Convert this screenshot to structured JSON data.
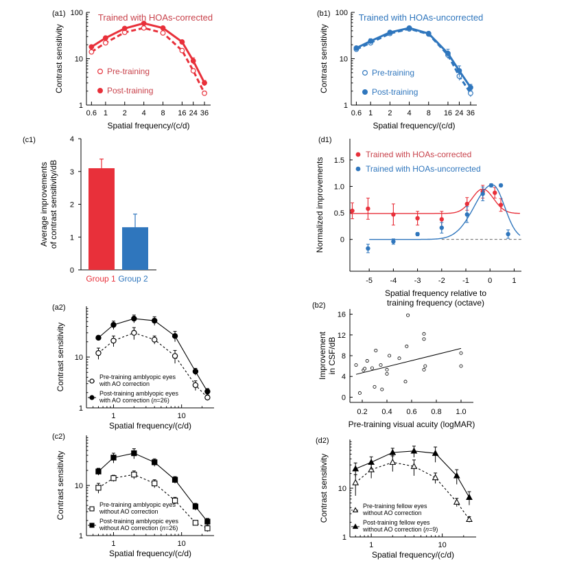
{
  "colors": {
    "red": "#e8303a",
    "blue": "#2f76bd",
    "black": "#000000",
    "redtext": "#c8414a"
  },
  "chart_data": [
    {
      "id": "a1",
      "type": "line",
      "panel_label": "(a1)",
      "title": "Trained with HOAs-corrected",
      "title_color": "red",
      "xlabel": "Spatial frequency/(c/d)",
      "ylabel": "Contrast sensitivity",
      "x_scale": "log",
      "y_scale": "log",
      "xlim": [
        0.5,
        45
      ],
      "ylim": [
        1,
        100
      ],
      "xticks": [
        0.6,
        1,
        2,
        4,
        8,
        16,
        24,
        36
      ],
      "xtick_labels": [
        "0.6",
        "1",
        "2",
        "4",
        "8",
        "16",
        "24",
        "36"
      ],
      "yticks": [
        1,
        10,
        100
      ],
      "ytick_labels": [
        "1",
        "10",
        "100"
      ],
      "legend_position": "left-middle",
      "series": [
        {
          "name": "Pre-training",
          "color": "red",
          "marker": "open-circle",
          "dash": true,
          "x": [
            0.6,
            1,
            2,
            4,
            8,
            16,
            24,
            36
          ],
          "y": [
            14,
            22,
            37,
            46,
            36,
            15,
            5.5,
            1.8
          ],
          "err": [
            1.2,
            2,
            3,
            3,
            3,
            1.5,
            0.6,
            0.2
          ]
        },
        {
          "name": "Post-training",
          "color": "red",
          "marker": "filled-circle",
          "dash": false,
          "x": [
            0.6,
            1,
            2,
            4,
            8,
            16,
            24,
            36
          ],
          "y": [
            18,
            28,
            45,
            58,
            46,
            23,
            9,
            3
          ],
          "err": [
            1.2,
            2,
            3,
            4,
            3,
            2,
            1.5,
            0.4
          ]
        }
      ]
    },
    {
      "id": "b1",
      "type": "line",
      "panel_label": "(b1)",
      "title": "Trained with HOAs-uncorrected",
      "title_color": "blue",
      "xlabel": "Spatial frequency/(c/d)",
      "ylabel": "Contrast sensitivity",
      "x_scale": "log",
      "y_scale": "log",
      "xlim": [
        0.5,
        45
      ],
      "ylim": [
        1,
        100
      ],
      "xticks": [
        0.6,
        1,
        2,
        4,
        8,
        16,
        24,
        36
      ],
      "xtick_labels": [
        "0.6",
        "1",
        "2",
        "4",
        "8",
        "16",
        "24",
        "36"
      ],
      "yticks": [
        1,
        10,
        100
      ],
      "ytick_labels": [
        "1",
        "10",
        "100"
      ],
      "legend_position": "left-bottom",
      "series": [
        {
          "name": "Pre-training",
          "color": "blue",
          "marker": "open-circle",
          "dash": true,
          "x": [
            0.6,
            1,
            2,
            4,
            8,
            16,
            24,
            36
          ],
          "y": [
            16,
            22,
            35,
            44,
            34,
            12,
            4.2,
            1.8
          ],
          "err": [
            1.5,
            2,
            3,
            3,
            3,
            2,
            0.8,
            0.3
          ]
        },
        {
          "name": "Post-training",
          "color": "blue",
          "marker": "filled-circle",
          "dash": false,
          "x": [
            0.6,
            1,
            2,
            4,
            8,
            16,
            24,
            36
          ],
          "y": [
            17,
            24,
            37,
            46,
            35,
            13,
            5.5,
            2.4
          ],
          "err": [
            1.5,
            3,
            3,
            3,
            3,
            3,
            1.5,
            0.4
          ]
        }
      ]
    },
    {
      "id": "c1",
      "type": "bar",
      "panel_label": "(c1)",
      "ylabel": "Average improvements of contrast sensitivity/dB",
      "ylim": [
        0,
        4
      ],
      "yticks": [
        0,
        1,
        2,
        3,
        4
      ],
      "categories": [
        "Group 1",
        "Group 2"
      ],
      "values": [
        3.1,
        1.3
      ],
      "err": [
        0.28,
        0.4
      ],
      "category_colors": [
        "red",
        "blue"
      ]
    },
    {
      "id": "d1",
      "type": "scatter",
      "panel_label": "(d1)",
      "xlabel": "Spatial frequency relative to training frequency (octave)",
      "ylabel": "Normalized improvements",
      "xlim": [
        -5.8,
        1.3
      ],
      "ylim": [
        -0.6,
        1.9
      ],
      "xticks": [
        -5,
        -4,
        -3,
        -2,
        -1,
        0,
        1
      ],
      "yticks": [
        0,
        0.5,
        1.0,
        1.5
      ],
      "ytick_labels": [
        "0",
        "0.5",
        "1.0",
        "1.5"
      ],
      "legend_position": "top-right",
      "series": [
        {
          "name": "Trained with HOAs-corrected",
          "color": "red",
          "x": [
            -5.7,
            -5.05,
            -4,
            -3,
            -2,
            -0.95,
            -0.3,
            0.2,
            0.45
          ],
          "y": [
            0.54,
            0.58,
            0.47,
            0.4,
            0.38,
            0.67,
            0.9,
            0.88,
            0.65
          ],
          "err": [
            0.15,
            0.2,
            0.2,
            0.13,
            0.15,
            0.12,
            0.12,
            0.1,
            0.12
          ]
        },
        {
          "name": "Trained with HOAs-uncorrected",
          "color": "blue",
          "x": [
            -5.05,
            -4,
            -3,
            -2,
            -0.95,
            -0.3,
            0.05,
            0.45,
            0.75
          ],
          "y": [
            -0.17,
            -0.04,
            0.1,
            0.22,
            0.47,
            0.86,
            1.02,
            1.02,
            0.1
          ],
          "err": [
            0.08,
            0.05,
            0.03,
            0.1,
            0.15,
            0.13,
            0.03,
            0.02,
            0.08
          ]
        }
      ]
    },
    {
      "id": "a2",
      "type": "line",
      "panel_label": "(a2)",
      "xlabel": "Spatial frequency/(c/d)",
      "ylabel": "Contrast sensitivity",
      "x_scale": "log",
      "y_scale": "log",
      "xlim": [
        0.4,
        30
      ],
      "ylim": [
        1,
        100
      ],
      "xticks": [
        1,
        10
      ],
      "xtick_labels": [
        "1",
        "10"
      ],
      "yticks": [
        1,
        10
      ],
      "ytick_labels": [
        "1",
        "10"
      ],
      "legend_position": "bottom-left",
      "series": [
        {
          "name": "Pre-training amblyopic eyes with AO correction",
          "color": "black",
          "marker": "open-circle",
          "dash": true,
          "x": [
            0.6,
            1,
            2,
            4,
            8,
            16,
            24
          ],
          "y": [
            12,
            21,
            30,
            22,
            10.5,
            2.8,
            1.6
          ],
          "err": [
            3,
            5,
            8,
            4,
            3,
            0.6,
            0.2
          ]
        },
        {
          "name": "Post-training amblyopic eyes with AO correction (n=26)",
          "color": "black",
          "marker": "filled-circle",
          "dash": false,
          "x": [
            0.6,
            1,
            2,
            4,
            8,
            16,
            24
          ],
          "y": [
            24,
            43,
            57,
            52,
            26,
            5.2,
            2.1
          ],
          "err": [
            2,
            8,
            10,
            10,
            6,
            0.8,
            0.3
          ]
        }
      ]
    },
    {
      "id": "b2",
      "type": "scatter",
      "panel_label": "(b2)",
      "xlabel": "Pre-training visual acuity (logMAR)",
      "ylabel": "Improvement in CSF/dB",
      "xlim": [
        0.1,
        1.1
      ],
      "ylim": [
        -1,
        17
      ],
      "xticks": [
        0.2,
        0.4,
        0.6,
        0.8,
        1.0
      ],
      "xtick_labels": [
        "0.2",
        "0.4",
        "0.6",
        "0.8",
        "1.0"
      ],
      "yticks": [
        0,
        4,
        8,
        12,
        16
      ],
      "points_x": [
        0.15,
        0.18,
        0.21,
        0.22,
        0.24,
        0.28,
        0.3,
        0.31,
        0.35,
        0.36,
        0.4,
        0.4,
        0.42,
        0.5,
        0.55,
        0.56,
        0.57,
        0.7,
        0.7,
        0.7,
        0.71,
        1.0,
        1.0
      ],
      "points_y": [
        6.2,
        0.8,
        5.2,
        5.5,
        7,
        5.6,
        2,
        9,
        6.2,
        1.5,
        5.3,
        4.5,
        8,
        7.5,
        3,
        9.8,
        15.8,
        12.2,
        11.2,
        5.3,
        6,
        8.5,
        6
      ],
      "fit_x": [
        0.15,
        1.0
      ],
      "fit_y": [
        4.4,
        9.4
      ]
    },
    {
      "id": "c2",
      "type": "line",
      "panel_label": "(c2)",
      "xlabel": "Spatial frequency/(c/d)",
      "ylabel": "Contrast sensitivity",
      "x_scale": "log",
      "y_scale": "log",
      "xlim": [
        0.4,
        30
      ],
      "ylim": [
        1,
        100
      ],
      "xticks": [
        1,
        10
      ],
      "xtick_labels": [
        "1",
        "10"
      ],
      "yticks": [
        1,
        10
      ],
      "ytick_labels": [
        "1",
        "10"
      ],
      "legend_position": "bottom-left",
      "series": [
        {
          "name": "Pre-training amblyopic eyes without AO correction",
          "color": "black",
          "marker": "open-square",
          "dash": true,
          "x": [
            0.6,
            1,
            2,
            4,
            8,
            16,
            24
          ],
          "y": [
            9,
            14,
            16.5,
            11,
            5,
            1.8,
            1.4
          ],
          "err": [
            2,
            2,
            3,
            2,
            0.8,
            0.2,
            0.2
          ]
        },
        {
          "name": "Post-training amblyopic eyes without AO correction (n=26)",
          "color": "black",
          "marker": "filled-square",
          "dash": false,
          "x": [
            0.6,
            1,
            2,
            4,
            8,
            16,
            24
          ],
          "y": [
            19,
            36,
            44,
            29,
            13,
            3.8,
            1.9
          ],
          "err": [
            3,
            8,
            10,
            5,
            2,
            0.6,
            0.3
          ]
        }
      ]
    },
    {
      "id": "d2",
      "type": "line",
      "panel_label": "(d2)",
      "xlabel": "Spatial frequency/(c/d)",
      "ylabel": "Contrast sensitivity",
      "x_scale": "log",
      "y_scale": "log",
      "xlim": [
        0.5,
        30
      ],
      "ylim": [
        1,
        100
      ],
      "xticks": [
        1,
        10
      ],
      "xtick_labels": [
        "1",
        "10"
      ],
      "yticks": [
        1,
        10
      ],
      "ytick_labels": [
        "1",
        "10"
      ],
      "legend_position": "bottom-left",
      "series": [
        {
          "name": "Pre-training fellow eyes without AO correction",
          "color": "black",
          "marker": "open-triangle",
          "dash": true,
          "x": [
            0.6,
            1,
            2,
            4,
            8,
            16,
            24
          ],
          "y": [
            13,
            24,
            34,
            28,
            16.5,
            5.2,
            2.3
          ],
          "err": [
            6,
            8,
            12,
            10,
            4,
            1,
            0.3
          ]
        },
        {
          "name": "Post-training fellow eyes without AO correction (n=9)",
          "color": "black",
          "marker": "filled-triangle",
          "dash": false,
          "x": [
            0.6,
            1,
            2,
            4,
            8,
            16,
            24
          ],
          "y": [
            25,
            34,
            54,
            58,
            52,
            18,
            6.5
          ],
          "err": [
            8,
            10,
            12,
            15,
            18,
            6,
            2
          ]
        }
      ]
    }
  ]
}
